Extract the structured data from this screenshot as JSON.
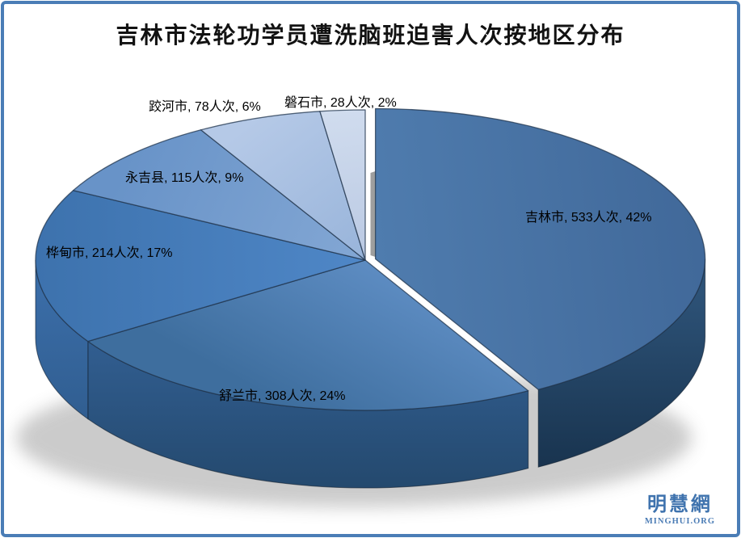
{
  "frame": {
    "border_color": "#4a7db6"
  },
  "chart_data": {
    "type": "pie",
    "style": "3d",
    "title": "吉林市法轮功学员遭洗脑班迫害人次按地区分布",
    "unit": "人次",
    "legend_position": "none",
    "label_format": "{name}, {value}人次, {pct}%",
    "slices": [
      {
        "name": "吉林市",
        "value": 533,
        "pct": 42,
        "label": "吉林市, 533人次, 42%",
        "inner": "#4f7cae",
        "outer": "#41699a",
        "side_top": "#2d5277",
        "side_bottom": "#16304a",
        "explode": 13
      },
      {
        "name": "舒兰市",
        "value": 308,
        "pct": 24,
        "label": "舒兰市, 308人次, 24%",
        "inner": "#5d8cc2",
        "outer": "#3e6e9e",
        "side_top": "#36659c",
        "side_bottom": "#24496e",
        "explode": 0
      },
      {
        "name": "桦甸市",
        "value": 214,
        "pct": 17,
        "label": "桦甸市, 214人次, 17%",
        "inner": "#4f87c7",
        "outer": "#3d72ad",
        "side_top": "#3a6ca6",
        "side_bottom": "#2b5685",
        "explode": 0
      },
      {
        "name": "永吉县",
        "value": 115,
        "pct": 9,
        "label": "永吉县, 115人次, 9%",
        "inner": "#83a7d4",
        "outer": "#6893c8",
        "side_top": "#5b86bd",
        "side_bottom": "#47719f",
        "explode": 0
      },
      {
        "name": "跤河市",
        "value": 78,
        "pct": 6,
        "label": "跤河市, 78人次, 6%",
        "inner": "#98b4da",
        "outer": "#b5c9e7",
        "side_top": "#8aa6cf",
        "side_bottom": "#7391b8",
        "explode": 0
      },
      {
        "name": "磐石市",
        "value": 28,
        "pct": 2,
        "label": "磐石市, 28人次, 2%",
        "inner": "#bac9e3",
        "outer": "#d0dcee",
        "side_top": "#aebfdb",
        "side_bottom": "#97abc9",
        "explode": 0
      }
    ]
  },
  "watermark": {
    "cn": "明慧網",
    "en": "MINGHUI.ORG",
    "color": "#3f73ae"
  }
}
